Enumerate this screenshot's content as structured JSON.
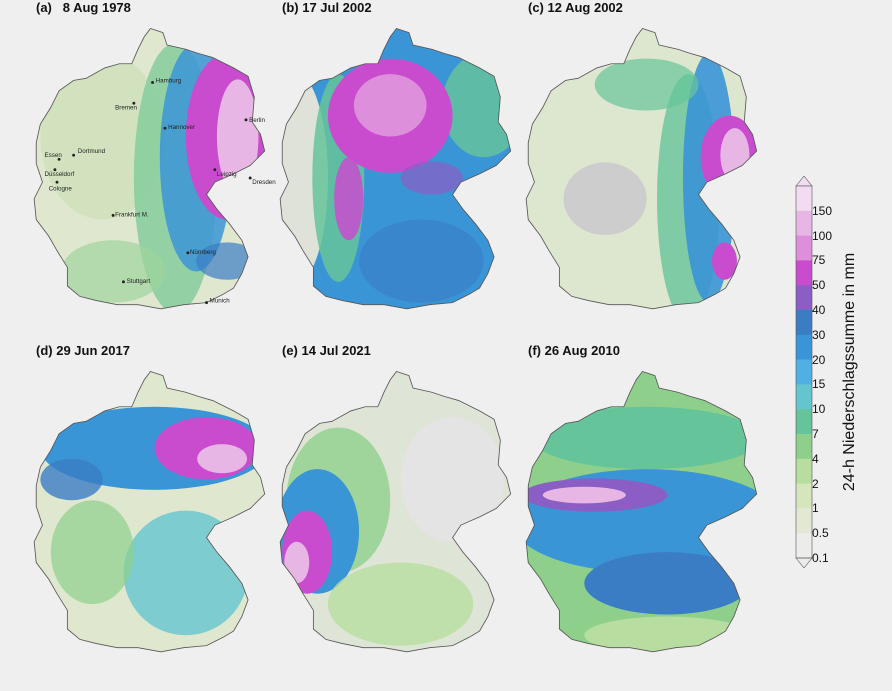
{
  "panels": [
    {
      "title": "(a)   8 Aug 1978",
      "cities": [
        "Hamburg",
        "Bremen",
        "Hannover",
        "Berlin",
        "Leipzig",
        "Dresden",
        "Dortmund",
        "Essen",
        "Düsseldorf",
        "Cologne",
        "Frankfurt M.",
        "Nürnberg",
        "Stuttgart",
        "Munich"
      ]
    },
    {
      "title": "(b) 17 Jul 2002"
    },
    {
      "title": "(c) 12 Aug 2002"
    },
    {
      "title": "(d) 29 Jun 2017"
    },
    {
      "title": "(e) 14 Jul 2021"
    },
    {
      "title": "(f) 26 Aug 2010"
    }
  ],
  "colorbar": {
    "label": "24-h Niederschlagssumme in mm",
    "ticks": [
      "150",
      "100",
      "75",
      "50",
      "40",
      "30",
      "20",
      "15",
      "10",
      "7",
      "4",
      "2",
      "1",
      "0.5",
      "0.1"
    ],
    "colors": [
      "#f3dcf1",
      "#e7b6e5",
      "#dd8fdb",
      "#c94ccf",
      "#8a5ec4",
      "#3b7dc4",
      "#3a95d6",
      "#4fb0e4",
      "#63c6cf",
      "#66c49a",
      "#8ed08b",
      "#b7dda0",
      "#d5e6bd",
      "#e3e8d4",
      "#ececea"
    ]
  }
}
